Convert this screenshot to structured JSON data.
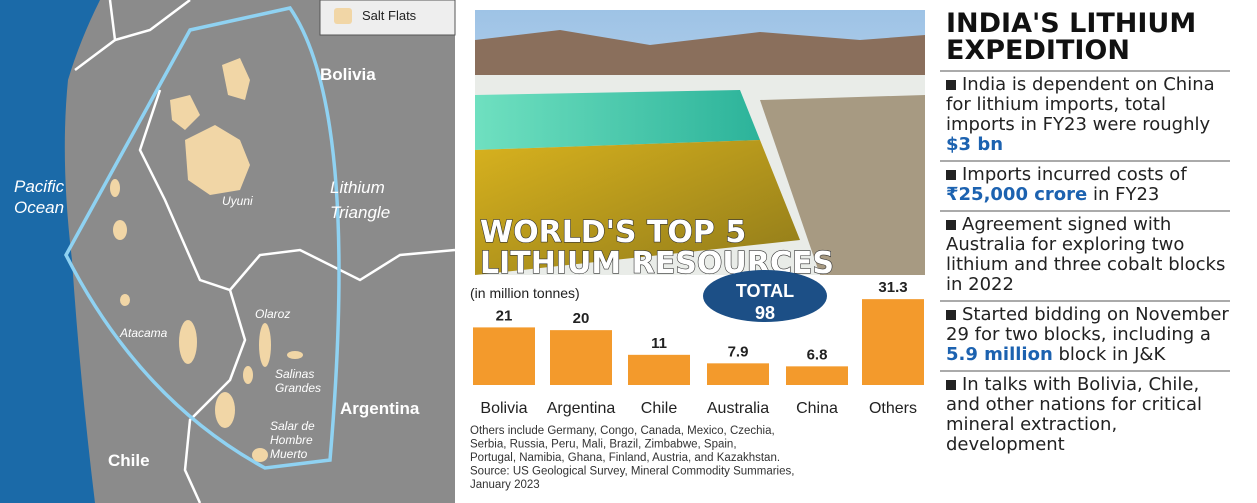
{
  "map": {
    "legend": "Salt Flats",
    "labels": {
      "bolivia": [
        "Bolivia"
      ],
      "ocean": [
        "Pacific",
        "Ocean"
      ],
      "triangle": [
        "Lithium",
        "Triangle"
      ],
      "uyuni": [
        "Uyuni"
      ],
      "atacama": [
        "Atacama"
      ],
      "olaroz": [
        "Olaroz"
      ],
      "salinas": [
        "Salinas",
        "Grandes"
      ],
      "hombre": [
        "Salar de",
        "Hombre",
        "Muerto"
      ],
      "argentina": [
        "Argentina"
      ],
      "chile": [
        "Chile"
      ]
    }
  },
  "chart_data": {
    "type": "bar",
    "title": [
      "WORLD'S TOP 5",
      "LITHIUM RESOURCES"
    ],
    "subtitle": "(in million tonnes)",
    "annotation": [
      "TOTAL",
      "98"
    ],
    "categories": [
      "Bolivia",
      "Argentina",
      "Chile",
      "Australia",
      "China",
      "Others"
    ],
    "values": [
      21,
      20,
      11,
      7.9,
      6.8,
      31.3
    ],
    "color": "#f39a2c",
    "ylim": [
      0,
      35
    ],
    "note": [
      "Others include  Germany, Congo, Canada, Mexico, Czechia,",
      "Serbia, Russia, Peru, Mali, Brazil, Zimbabwe, Spain,",
      "Portugal, Namibia, Ghana, Finland, Austria, and Kazakhstan.",
      "Source: US Geological Survey, Mineral Commodity Summaries,",
      "January 2023"
    ]
  },
  "infographic": {
    "heading": [
      "INDIA'S LITHIUM",
      "EXPEDITION"
    ],
    "bullets": [
      [
        "India is dependent on China for lithium imports, total imports in FY23 were roughly ",
        "$3 bn"
      ],
      [
        "Imports incurred costs of ",
        "₹25,000 crore",
        " in FY23"
      ],
      [
        "Agreement signed with Australia for exploring two lithium and three cobalt blocks in 2022"
      ],
      [
        "Started bidding on November 29 for two blocks, including a ",
        "5.9 million",
        " block in J&K"
      ],
      [
        "In talks with Bolivia, Chile, and other nations for critical mineral extraction, development"
      ]
    ]
  }
}
